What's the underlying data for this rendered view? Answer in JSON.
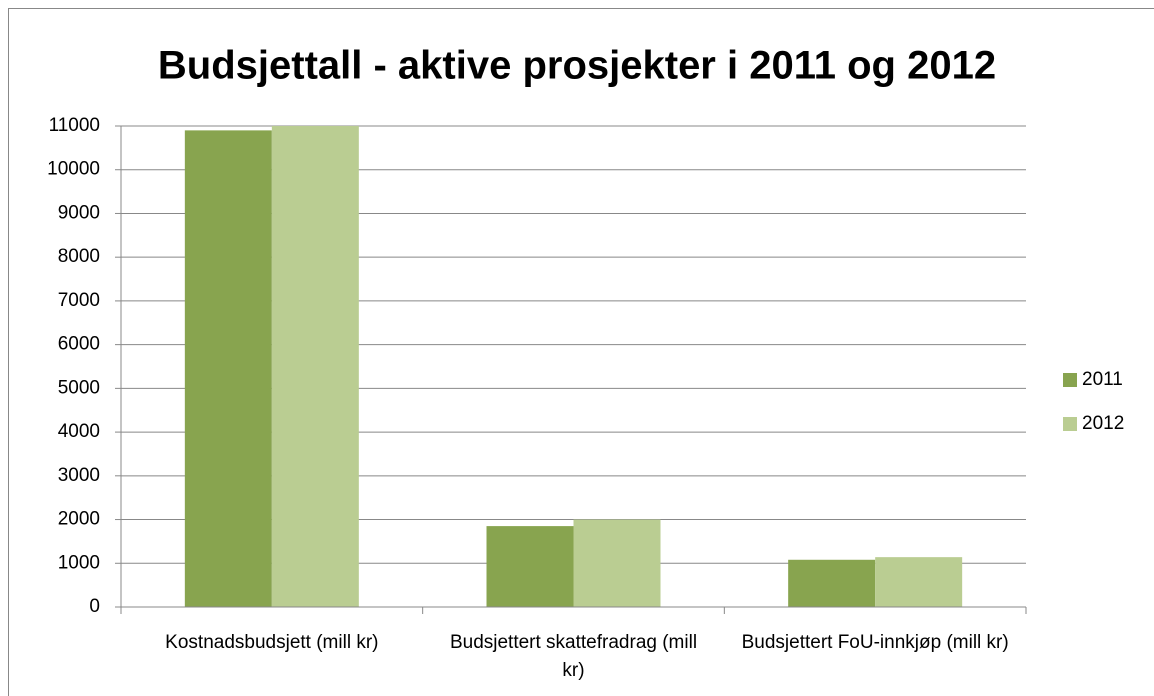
{
  "chart_data": {
    "type": "bar",
    "title": "Budsjettall - aktive prosjekter  i 2011 og 2012",
    "categories": [
      "Kostnadsbudsjett (mill kr)",
      "Budsjettert skattefradrag (mill kr)",
      "Budsjettert FoU-innkjøp (mill kr)"
    ],
    "series": [
      {
        "name": "2011",
        "color": "#88a44f",
        "values": [
          10900,
          1850,
          1080
        ]
      },
      {
        "name": "2012",
        "color": "#bacd92",
        "values": [
          11000,
          2000,
          1140
        ]
      }
    ],
    "ylim": [
      0,
      11000
    ],
    "yticks": [
      0,
      1000,
      2000,
      3000,
      4000,
      5000,
      6000,
      7000,
      8000,
      9000,
      10000,
      11000
    ],
    "grid": true,
    "legend": "right"
  }
}
